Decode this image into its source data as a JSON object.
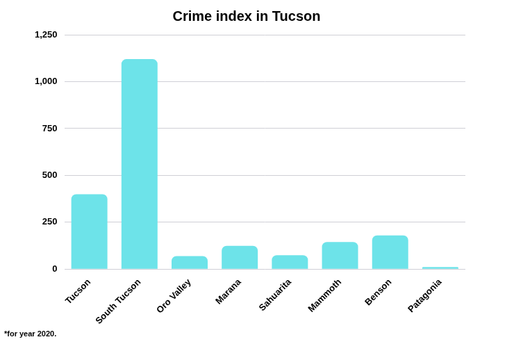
{
  "chart_data": {
    "type": "bar",
    "title": "Crime index in Tucson",
    "annotation": "*for year 2020.",
    "categories": [
      "Tucson",
      "South Tucson",
      "Oro Valley",
      "Marana",
      "Sahuarita",
      "Mammoth",
      "Benson",
      "Patagonia"
    ],
    "values": [
      400,
      1120,
      70,
      125,
      75,
      145,
      180,
      12
    ],
    "color": "#6de3e9",
    "ylim": [
      0,
      1250
    ],
    "yticks": [
      0,
      250,
      500,
      750,
      {
        "value": 1000,
        "label": "1,000"
      },
      {
        "value": 1250,
        "label": "1,250"
      }
    ],
    "grid": true
  }
}
